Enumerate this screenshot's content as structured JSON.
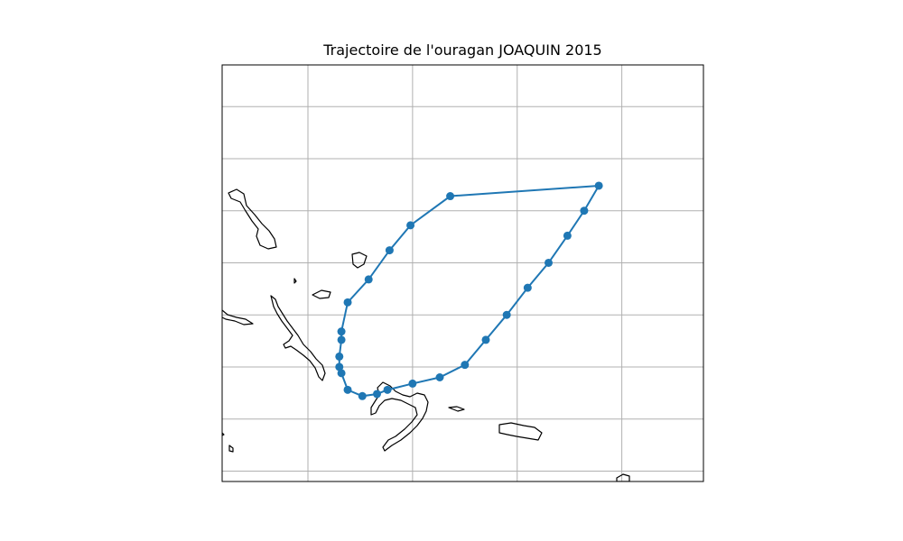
{
  "title": "Trajectoire de l'ouragan JOAQUIN 2015",
  "colors": {
    "track": "#1f77b4",
    "grid": "#b0b0b0",
    "coast": "#000000",
    "frame": "#000000"
  },
  "map": {
    "projection": "PlateCarree",
    "gridlines": true,
    "lon_range": [
      -78.5,
      -55.5
    ],
    "lat_range": [
      19.5,
      39.5
    ],
    "grid_lons": [
      -74.4,
      -69.4,
      -64.4,
      -59.4
    ],
    "grid_lats": [
      20.0,
      22.5,
      25.0,
      27.5,
      30.0,
      32.5,
      35.0,
      37.5
    ]
  },
  "chart_data": {
    "type": "scatter",
    "series": [
      {
        "marker": "circle",
        "line": true,
        "points": [
          {
            "lon": -72.9,
            "lat": 25.0
          },
          {
            "lon": -72.9,
            "lat": 25.5
          },
          {
            "lon": -72.8,
            "lat": 26.3
          },
          {
            "lon": -72.8,
            "lat": 26.7
          },
          {
            "lon": -72.5,
            "lat": 28.1
          },
          {
            "lon": -71.5,
            "lat": 29.2
          },
          {
            "lon": -70.5,
            "lat": 30.6
          },
          {
            "lon": -69.5,
            "lat": 31.8
          },
          {
            "lon": -67.6,
            "lat": 33.2
          },
          {
            "lon": -60.5,
            "lat": 33.7
          },
          {
            "lon": -61.2,
            "lat": 32.5
          },
          {
            "lon": -62.0,
            "lat": 31.3
          },
          {
            "lon": -62.9,
            "lat": 30.0
          },
          {
            "lon": -63.9,
            "lat": 28.8
          },
          {
            "lon": -64.9,
            "lat": 27.5
          },
          {
            "lon": -65.9,
            "lat": 26.3
          },
          {
            "lon": -66.9,
            "lat": 25.1
          },
          {
            "lon": -68.1,
            "lat": 24.5
          },
          {
            "lon": -69.4,
            "lat": 24.2
          },
          {
            "lon": -70.6,
            "lat": 23.9
          },
          {
            "lon": -71.1,
            "lat": 23.7
          },
          {
            "lon": -71.8,
            "lat": 23.6
          },
          {
            "lon": -72.5,
            "lat": 23.9
          },
          {
            "lon": -72.8,
            "lat": 24.7
          }
        ]
      }
    ]
  }
}
